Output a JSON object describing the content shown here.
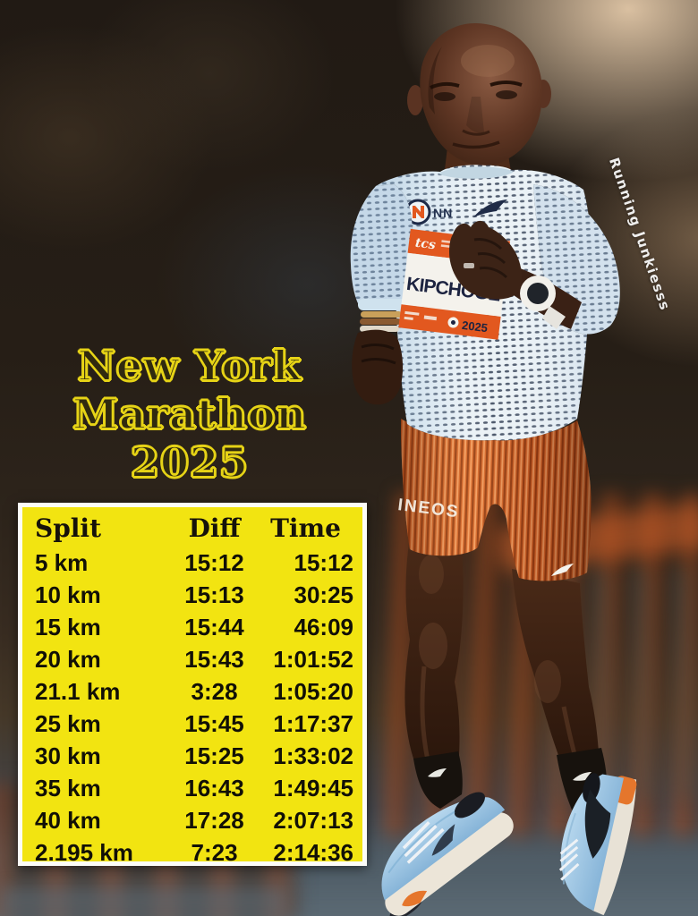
{
  "poster": {
    "title": {
      "line1": "New York",
      "line2": "Marathon",
      "line3": "2025"
    },
    "watermark": "Running Junkiesss",
    "colors": {
      "table_yellow": "#f2e411",
      "title_outline_yellow": "#e6d316",
      "bib_orange": "#e2581f",
      "shorts_orange": "#d4682c",
      "shoe_blue": "#a4c8e4",
      "shirt_white": "#ebf2f6"
    }
  },
  "runner": {
    "athlete_bib_name": "KIPCHOGE",
    "bib_sponsor": "tcs",
    "bib_year": "2025",
    "shirt_team": "NN",
    "shorts_sponsor": "INEOS"
  },
  "splits_table": {
    "headers": {
      "split": "Split",
      "diff": "Diff",
      "time": "Time"
    },
    "rows": [
      {
        "split": "5 km",
        "diff": "15:12",
        "time": "15:12"
      },
      {
        "split": "10 km",
        "diff": "15:13",
        "time": "30:25"
      },
      {
        "split": "15 km",
        "diff": "15:44",
        "time": "46:09"
      },
      {
        "split": "20 km",
        "diff": "15:43",
        "time": "1:01:52"
      },
      {
        "split": "21.1 km",
        "diff": "3:28",
        "time": "1:05:20"
      },
      {
        "split": "25 km",
        "diff": "15:45",
        "time": "1:17:37"
      },
      {
        "split": "30 km",
        "diff": "15:25",
        "time": "1:33:02"
      },
      {
        "split": "35 km",
        "diff": "16:43",
        "time": "1:49:45"
      },
      {
        "split": "40 km",
        "diff": "17:28",
        "time": "2:07:13"
      },
      {
        "split": "2.195 km",
        "diff": "7:23",
        "time": "2:14:36"
      }
    ]
  }
}
